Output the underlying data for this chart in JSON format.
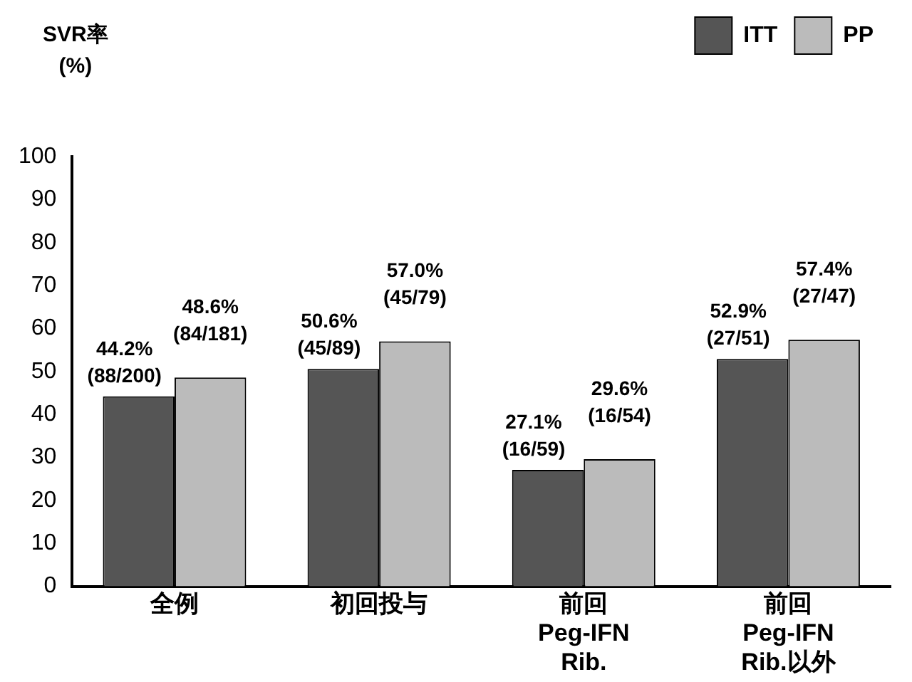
{
  "chart_data": {
    "type": "bar",
    "ylabel": "SVR率\n(%)",
    "categories": [
      "全例",
      "初回投与",
      "前回\nPeg-IFN\nRib.",
      "前回\nPeg-IFN\nRib.以外"
    ],
    "series": [
      {
        "name": "ITT",
        "color": "#555555",
        "values": [
          44.2,
          50.6,
          27.1,
          52.9
        ],
        "value_labels": [
          "44.2%\n(88/200)",
          "50.6%\n(45/89)",
          "27.1%\n(16/59)",
          "52.9%\n(27/51)"
        ]
      },
      {
        "name": "PP",
        "color": "#bbbbbb",
        "values": [
          48.6,
          57.0,
          29.6,
          57.4
        ],
        "value_labels": [
          "48.6%\n(84/181)",
          "57.0%\n(45/79)",
          "29.6%\n(16/54)",
          "57.4%\n(27/47)"
        ]
      }
    ],
    "ylim": [
      0,
      100
    ],
    "yticks": [
      0,
      10,
      20,
      30,
      40,
      50,
      60,
      70,
      80,
      90,
      100
    ],
    "grid": false,
    "legend": "top right"
  }
}
